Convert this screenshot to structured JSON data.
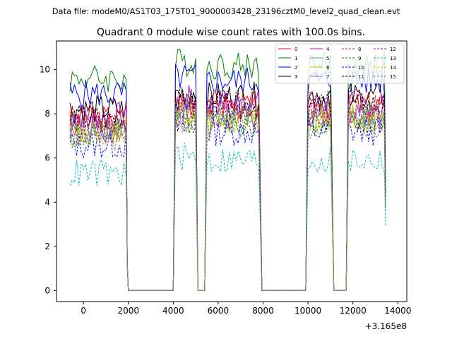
{
  "suptitle": "Data file: modeM0/AS1T03_175T01_9000003428_23196cztM0_level2_quad_clean.evt",
  "chart_data": {
    "type": "line",
    "title": "Quadrant 0 module wise count rates with 100.0s bins.",
    "xlabel": "",
    "ylabel": "",
    "x_offset_label": "+3.165e8",
    "xlim": [
      -1200,
      14400
    ],
    "ylim": [
      -0.5,
      11.3
    ],
    "x_ticks": [
      0,
      2000,
      4000,
      6000,
      8000,
      10000,
      12000,
      14000
    ],
    "x_tick_labels": [
      "0",
      "2000",
      "4000",
      "6000",
      "8000",
      "10000",
      "12000",
      "14000"
    ],
    "y_ticks": [
      0,
      2,
      4,
      6,
      8,
      10
    ],
    "y_tick_labels": [
      "0",
      "2",
      "4",
      "6",
      "8",
      "10"
    ],
    "grid": false,
    "legend_position": "top-right",
    "bin_width_s": 100,
    "active_segments": [
      [
        -600,
        1900
      ],
      [
        4100,
        5000
      ],
      [
        5500,
        7850
      ],
      [
        10000,
        11050
      ],
      [
        11800,
        13450
      ]
    ],
    "transitions": [
      [
        1900,
        2100
      ],
      [
        4000,
        4100
      ],
      [
        5000,
        5100
      ],
      [
        5400,
        5500
      ],
      [
        7850,
        8000
      ],
      [
        9900,
        10000
      ],
      [
        11050,
        11200
      ],
      [
        11700,
        11800
      ]
    ],
    "series": [
      {
        "name": "0",
        "color": "#ff0000",
        "dash": "solid",
        "base_rate": 7.8
      },
      {
        "name": "1",
        "color": "#008000",
        "dash": "solid",
        "base_rate": 9.6
      },
      {
        "name": "2",
        "color": "#0000ff",
        "dash": "solid",
        "base_rate": 8.9
      },
      {
        "name": "3",
        "color": "#000000",
        "dash": "solid",
        "base_rate": 8.2
      },
      {
        "name": "4",
        "color": "#bf00bf",
        "dash": "solid",
        "base_rate": 7.9
      },
      {
        "name": "5",
        "color": "#3cb371",
        "dash": "solid",
        "base_rate": 7.4
      },
      {
        "name": "6",
        "color": "#bfbf00",
        "dash": "solid",
        "base_rate": 7.2
      },
      {
        "name": "7",
        "color": "#7b68ee",
        "dash": "solid",
        "base_rate": 7.5
      },
      {
        "name": "8",
        "color": "#ff0000",
        "dash": "dashed",
        "base_rate": 7.6
      },
      {
        "name": "9",
        "color": "#008000",
        "dash": "dashed",
        "base_rate": 7.0
      },
      {
        "name": "10",
        "color": "#0000ff",
        "dash": "dashed",
        "base_rate": 6.6
      },
      {
        "name": "11",
        "color": "#000000",
        "dash": "dashed",
        "base_rate": 7.8
      },
      {
        "name": "12",
        "color": "#bf00bf",
        "dash": "dashed",
        "base_rate": 7.3
      },
      {
        "name": "13",
        "color": "#00bfbf",
        "dash": "dashed",
        "base_rate": 5.3
      },
      {
        "name": "14",
        "color": "#bfbf00",
        "dash": "dashed",
        "base_rate": 7.1
      },
      {
        "name": "15",
        "color": "#808080",
        "dash": "dashed",
        "base_rate": 6.9
      }
    ]
  }
}
